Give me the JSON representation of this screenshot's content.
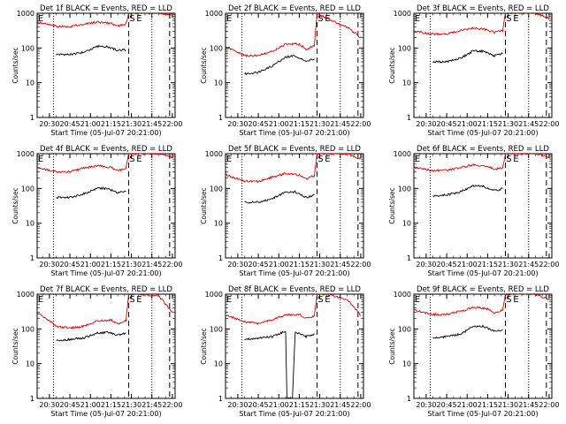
{
  "figure": {
    "xlabel": "Start Time (05-Jul-07 20:21:00)",
    "ylabel": "Counts/sec",
    "x_ticks": [
      "20:30",
      "20:45",
      "21:00",
      "21:15",
      "21:30",
      "21:45",
      "22:00"
    ],
    "y_ticks": [
      "1",
      "10",
      "100",
      "1000"
    ],
    "marker_S": "S",
    "marker_E": "E",
    "colors": {
      "events": "#000000",
      "lld": "#dd0000",
      "axes": "#000000",
      "bg": "#ffffff"
    }
  },
  "chart_data": [
    {
      "type": "line",
      "title": "Det 1f BLACK = Events, RED = LLD",
      "xlim": [
        "20:21",
        "22:02"
      ],
      "ylim": [
        1,
        1000
      ],
      "yscale": "log",
      "series": [
        {
          "name": "Events",
          "color": "#000000",
          "x": [
            "20:35",
            "20:45",
            "20:55",
            "21:05",
            "21:12",
            "21:20",
            "21:26"
          ],
          "values": [
            65,
            65,
            75,
            110,
            110,
            85,
            90
          ]
        },
        {
          "name": "LLD",
          "color": "#dd0000",
          "x": [
            "20:21",
            "20:35",
            "20:45",
            "20:55",
            "21:05",
            "21:15",
            "21:20",
            "21:26",
            "21:28",
            "21:35",
            "21:50",
            "22:00"
          ],
          "values": [
            550,
            420,
            410,
            490,
            560,
            510,
            430,
            500,
            1000,
            1000,
            1000,
            900
          ]
        }
      ]
    },
    {
      "type": "line",
      "title": "Det 2f BLACK = Events, RED = LLD",
      "xlim": [
        "20:21",
        "22:02"
      ],
      "ylim": [
        1,
        1000
      ],
      "yscale": "log",
      "series": [
        {
          "name": "Events",
          "color": "#000000",
          "x": [
            "20:35",
            "20:45",
            "20:55",
            "21:05",
            "21:12",
            "21:20",
            "21:26"
          ],
          "values": [
            18,
            20,
            30,
            55,
            60,
            40,
            50
          ]
        },
        {
          "name": "LLD",
          "color": "#dd0000",
          "x": [
            "20:21",
            "20:35",
            "20:45",
            "20:55",
            "21:05",
            "21:15",
            "21:20",
            "21:26",
            "21:28",
            "21:35",
            "21:50",
            "22:00"
          ],
          "values": [
            110,
            60,
            60,
            80,
            130,
            130,
            90,
            120,
            1000,
            700,
            400,
            200
          ]
        }
      ]
    },
    {
      "type": "line",
      "title": "Det 3f BLACK = Events, RED = LLD",
      "xlim": [
        "20:21",
        "22:02"
      ],
      "ylim": [
        1,
        1000
      ],
      "yscale": "log",
      "series": [
        {
          "name": "Events",
          "color": "#000000",
          "x": [
            "20:35",
            "20:45",
            "20:55",
            "21:05",
            "21:12",
            "21:20",
            "21:26"
          ],
          "values": [
            40,
            40,
            50,
            85,
            80,
            60,
            70
          ]
        },
        {
          "name": "LLD",
          "color": "#dd0000",
          "x": [
            "20:21",
            "20:35",
            "20:45",
            "20:55",
            "21:05",
            "21:15",
            "21:20",
            "21:26",
            "21:28",
            "21:35",
            "21:50",
            "22:00"
          ],
          "values": [
            300,
            250,
            250,
            320,
            380,
            330,
            280,
            320,
            1000,
            1000,
            1000,
            700
          ]
        }
      ]
    },
    {
      "type": "line",
      "title": "Det 4f BLACK = Events, RED = LLD",
      "xlim": [
        "20:21",
        "22:02"
      ],
      "ylim": [
        1,
        1000
      ],
      "yscale": "log",
      "series": [
        {
          "name": "Events",
          "color": "#000000",
          "x": [
            "20:35",
            "20:45",
            "20:55",
            "21:05",
            "21:12",
            "21:20",
            "21:26"
          ],
          "values": [
            55,
            55,
            70,
            100,
            100,
            75,
            85
          ]
        },
        {
          "name": "LLD",
          "color": "#dd0000",
          "x": [
            "20:21",
            "20:35",
            "20:45",
            "20:55",
            "21:05",
            "21:15",
            "21:20",
            "21:26",
            "21:28",
            "21:35",
            "21:50",
            "22:00"
          ],
          "values": [
            400,
            300,
            300,
            380,
            450,
            400,
            320,
            380,
            1000,
            1000,
            1000,
            800
          ]
        }
      ]
    },
    {
      "type": "line",
      "title": "Det 5f BLACK = Events, RED = LLD",
      "xlim": [
        "20:21",
        "22:02"
      ],
      "ylim": [
        1,
        1000
      ],
      "yscale": "log",
      "series": [
        {
          "name": "Events",
          "color": "#000000",
          "x": [
            "20:35",
            "20:45",
            "20:55",
            "21:05",
            "21:12",
            "21:20",
            "21:26"
          ],
          "values": [
            40,
            40,
            50,
            80,
            80,
            55,
            65
          ]
        },
        {
          "name": "LLD",
          "color": "#dd0000",
          "x": [
            "20:21",
            "20:35",
            "20:45",
            "20:55",
            "21:05",
            "21:15",
            "21:20",
            "21:26",
            "21:28",
            "21:35",
            "21:50",
            "22:00"
          ],
          "values": [
            250,
            160,
            160,
            210,
            270,
            240,
            190,
            230,
            1000,
            1000,
            1000,
            700
          ]
        }
      ]
    },
    {
      "type": "line",
      "title": "Det 6f BLACK = Events, RED = LLD",
      "xlim": [
        "20:21",
        "22:02"
      ],
      "ylim": [
        1,
        1000
      ],
      "yscale": "log",
      "series": [
        {
          "name": "Events",
          "color": "#000000",
          "x": [
            "20:35",
            "20:45",
            "20:55",
            "21:05",
            "21:12",
            "21:20",
            "21:26"
          ],
          "values": [
            60,
            65,
            80,
            120,
            115,
            85,
            100
          ]
        },
        {
          "name": "LLD",
          "color": "#dd0000",
          "x": [
            "20:21",
            "20:35",
            "20:45",
            "20:55",
            "21:05",
            "21:15",
            "21:20",
            "21:26",
            "21:28",
            "21:35",
            "21:50",
            "22:00"
          ],
          "values": [
            400,
            330,
            330,
            400,
            480,
            430,
            350,
            400,
            1000,
            1000,
            1000,
            800
          ]
        }
      ]
    },
    {
      "type": "line",
      "title": "Det 7f BLACK = Events, RED = LLD",
      "xlim": [
        "20:21",
        "22:02"
      ],
      "ylim": [
        1,
        1000
      ],
      "yscale": "log",
      "series": [
        {
          "name": "Events",
          "color": "#000000",
          "x": [
            "20:35",
            "20:45",
            "20:55",
            "21:05",
            "21:12",
            "21:20",
            "21:26"
          ],
          "values": [
            45,
            50,
            55,
            75,
            80,
            65,
            75
          ]
        },
        {
          "name": "LLD",
          "color": "#dd0000",
          "x": [
            "20:21",
            "20:35",
            "20:45",
            "20:55",
            "21:05",
            "21:15",
            "21:20",
            "21:26",
            "21:28",
            "21:35",
            "21:50",
            "22:00"
          ],
          "values": [
            300,
            120,
            105,
            120,
            170,
            180,
            140,
            170,
            1000,
            1000,
            900,
            300
          ]
        }
      ]
    },
    {
      "type": "line",
      "title": "Det 8f BLACK = Events, RED = LLD",
      "xlim": [
        "20:21",
        "22:02"
      ],
      "ylim": [
        1,
        1000
      ],
      "yscale": "log",
      "series": [
        {
          "name": "Events",
          "color": "#000000",
          "x": [
            "20:35",
            "20:45",
            "20:55",
            "21:05",
            "21:06",
            "21:08",
            "21:09",
            "21:10",
            "21:12",
            "21:20",
            "21:26"
          ],
          "values": [
            50,
            55,
            60,
            85,
            1,
            1,
            1,
            1,
            80,
            60,
            70
          ]
        },
        {
          "name": "LLD",
          "color": "#dd0000",
          "x": [
            "20:21",
            "20:35",
            "20:45",
            "20:55",
            "21:05",
            "21:15",
            "21:20",
            "21:26",
            "21:28",
            "21:35",
            "21:50",
            "22:00"
          ],
          "values": [
            260,
            160,
            140,
            180,
            250,
            260,
            200,
            230,
            1000,
            1000,
            700,
            250
          ]
        }
      ]
    },
    {
      "type": "line",
      "title": "Det 9f BLACK = Events, RED = LLD",
      "xlim": [
        "20:21",
        "22:02"
      ],
      "ylim": [
        1,
        1000
      ],
      "yscale": "log",
      "series": [
        {
          "name": "Events",
          "color": "#000000",
          "x": [
            "20:35",
            "20:45",
            "20:55",
            "21:05",
            "21:12",
            "21:20",
            "21:26"
          ],
          "values": [
            55,
            60,
            70,
            120,
            120,
            85,
            95
          ]
        },
        {
          "name": "LLD",
          "color": "#dd0000",
          "x": [
            "20:21",
            "20:35",
            "20:45",
            "20:55",
            "21:05",
            "21:15",
            "21:20",
            "21:26",
            "21:28",
            "21:35",
            "21:50",
            "22:00"
          ],
          "values": [
            350,
            260,
            260,
            320,
            420,
            380,
            290,
            340,
            1000,
            1000,
            1000,
            700
          ]
        }
      ]
    }
  ]
}
